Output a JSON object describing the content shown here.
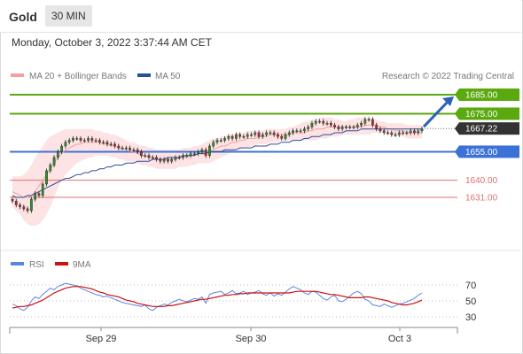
{
  "header": {
    "title": "Gold",
    "timeframe": "30 MIN"
  },
  "date_label": "Monday, October 3, 2022 3:37:44 AM CET",
  "legend": {
    "ma20": "MA 20 + Bollinger Bands",
    "ma50": "MA 50",
    "credit": "Research © 2022 Trading Central",
    "rsi": "RSI",
    "rsi9": "9MA"
  },
  "colors": {
    "resistance": "#5aa90e",
    "support": "#3c72d8",
    "minor_support": "#e07070",
    "last_price": "#333333",
    "bollinger": "#fde3e3",
    "ma20": "#f4a0a0",
    "ma50": "#2c4f9a",
    "rsi": "#5b86e0",
    "rsi_ma": "#cc1111",
    "arrow": "#2a62b8",
    "candle_up": "#2f8f2f",
    "candle_down": "#b03030"
  },
  "chart_data": [
    {
      "type": "candlestick",
      "title": "Gold",
      "ylim": [
        1616,
        1700
      ],
      "x_ticks": [
        "Sep 29",
        "Sep 30",
        "Oct 3"
      ],
      "levels": [
        {
          "label": "1685.00",
          "value": 1685.0,
          "kind": "resistance"
        },
        {
          "label": "1675.00",
          "value": 1675.0,
          "kind": "resistance"
        },
        {
          "label": "1667.22",
          "value": 1667.22,
          "kind": "last_price"
        },
        {
          "label": "1655.00",
          "value": 1655.0,
          "kind": "support"
        },
        {
          "label": "1640.00",
          "value": 1640.0,
          "kind": "minor_support"
        },
        {
          "label": "1631.00",
          "value": 1631.0,
          "kind": "minor_support"
        }
      ],
      "close": [
        1629,
        1627,
        1626,
        1625,
        1624,
        1630,
        1633,
        1632,
        1638,
        1645,
        1648,
        1652,
        1655,
        1658,
        1660,
        1661,
        1662,
        1662,
        1661,
        1661,
        1662,
        1661,
        1661,
        1660,
        1660,
        1659,
        1659,
        1658,
        1657,
        1657,
        1657,
        1656,
        1656,
        1655,
        1653,
        1653,
        1652,
        1652,
        1651,
        1650,
        1651,
        1650,
        1651,
        1652,
        1652,
        1653,
        1653,
        1654,
        1654,
        1655,
        1656,
        1653,
        1658,
        1660,
        1661,
        1661,
        1662,
        1663,
        1662,
        1664,
        1663,
        1663,
        1664,
        1664,
        1665,
        1663,
        1664,
        1665,
        1665,
        1664,
        1663,
        1662,
        1664,
        1665,
        1666,
        1666,
        1666,
        1667,
        1668,
        1670,
        1671,
        1671,
        1670,
        1670,
        1669,
        1668,
        1667,
        1668,
        1668,
        1668,
        1668,
        1669,
        1670,
        1672,
        1672,
        1669,
        1667,
        1666,
        1665,
        1665,
        1664,
        1664,
        1665,
        1665,
        1665,
        1666,
        1665,
        1666,
        1667
      ],
      "series": [
        {
          "name": "MA 20",
          "values": [
            1634,
            1633,
            1632,
            1631,
            1631,
            1632,
            1634,
            1637,
            1640,
            1643,
            1646,
            1649,
            1652,
            1654,
            1656,
            1657,
            1658,
            1659,
            1659,
            1660,
            1660,
            1660,
            1660,
            1660,
            1659,
            1659,
            1658,
            1658,
            1657,
            1657,
            1656,
            1655,
            1655,
            1654,
            1653,
            1653,
            1652,
            1652,
            1651,
            1651,
            1651,
            1651,
            1651,
            1651,
            1652,
            1652,
            1652,
            1653,
            1653,
            1654,
            1654,
            1655,
            1655,
            1656,
            1657,
            1658,
            1658,
            1659,
            1660,
            1660,
            1661,
            1661,
            1662,
            1662,
            1662,
            1663,
            1663,
            1663,
            1664,
            1664,
            1664,
            1664,
            1664,
            1664,
            1665,
            1665,
            1665,
            1665,
            1666,
            1666,
            1667,
            1667,
            1667,
            1668,
            1668,
            1668,
            1668,
            1668,
            1668,
            1668,
            1668,
            1668,
            1668,
            1669,
            1669,
            1669,
            1669,
            1668,
            1668,
            1667,
            1667,
            1666,
            1666,
            1666,
            1665,
            1665,
            1665,
            1665,
            1665
          ]
        },
        {
          "name": "MA 50",
          "values": [
            1632,
            1631,
            1631,
            1631,
            1632,
            1632,
            1633,
            1634,
            1635,
            1636,
            1637,
            1638,
            1639,
            1640,
            1641,
            1641,
            1642,
            1643,
            1643,
            1644,
            1644,
            1645,
            1645,
            1646,
            1646,
            1647,
            1647,
            1648,
            1648,
            1648,
            1649,
            1649,
            1649,
            1650,
            1650,
            1650,
            1650,
            1651,
            1651,
            1651,
            1651,
            1652,
            1652,
            1652,
            1652,
            1653,
            1653,
            1653,
            1653,
            1654,
            1654,
            1654,
            1655,
            1655,
            1655,
            1655,
            1656,
            1656,
            1656,
            1656,
            1657,
            1657,
            1657,
            1657,
            1658,
            1658,
            1658,
            1658,
            1659,
            1659,
            1659,
            1660,
            1660,
            1660,
            1661,
            1661,
            1661,
            1662,
            1662,
            1663,
            1663,
            1663,
            1664,
            1664,
            1664,
            1665,
            1665,
            1665,
            1666,
            1666,
            1666,
            1666,
            1667,
            1667,
            1667,
            1667,
            1667,
            1667,
            1667,
            1667,
            1667,
            1667,
            1667,
            1667,
            1667,
            1667,
            1667,
            1667,
            1667
          ]
        }
      ],
      "bollinger_upper": [
        1642,
        1642,
        1642,
        1643,
        1645,
        1648,
        1652,
        1655,
        1658,
        1661,
        1663,
        1664,
        1665,
        1666,
        1667,
        1667,
        1667,
        1667,
        1667,
        1667,
        1667,
        1667,
        1666,
        1666,
        1665,
        1665,
        1664,
        1664,
        1663,
        1662,
        1661,
        1660,
        1660,
        1659,
        1658,
        1658,
        1657,
        1657,
        1656,
        1656,
        1656,
        1656,
        1656,
        1656,
        1656,
        1657,
        1657,
        1657,
        1658,
        1658,
        1659,
        1660,
        1661,
        1662,
        1662,
        1663,
        1663,
        1664,
        1664,
        1665,
        1665,
        1665,
        1666,
        1666,
        1666,
        1666,
        1666,
        1667,
        1667,
        1667,
        1667,
        1667,
        1667,
        1668,
        1668,
        1669,
        1670,
        1671,
        1671,
        1672,
        1672,
        1673,
        1673,
        1673,
        1673,
        1672,
        1672,
        1671,
        1671,
        1672,
        1672,
        1673,
        1673,
        1673,
        1673,
        1672,
        1672,
        1671,
        1671,
        1670,
        1670,
        1670,
        1670,
        1670,
        1669,
        1669,
        1669,
        1669,
        1669
      ],
      "bollinger_lower": [
        1626,
        1624,
        1622,
        1619,
        1617,
        1616,
        1616,
        1617,
        1619,
        1622,
        1626,
        1631,
        1636,
        1640,
        1643,
        1645,
        1647,
        1649,
        1650,
        1651,
        1652,
        1652,
        1653,
        1653,
        1653,
        1653,
        1652,
        1652,
        1651,
        1651,
        1650,
        1650,
        1649,
        1649,
        1648,
        1648,
        1647,
        1647,
        1646,
        1646,
        1646,
        1646,
        1646,
        1646,
        1647,
        1647,
        1647,
        1648,
        1648,
        1649,
        1649,
        1649,
        1649,
        1650,
        1651,
        1652,
        1653,
        1654,
        1655,
        1656,
        1656,
        1657,
        1657,
        1658,
        1658,
        1659,
        1659,
        1659,
        1660,
        1660,
        1660,
        1661,
        1661,
        1661,
        1661,
        1661,
        1661,
        1661,
        1661,
        1661,
        1661,
        1662,
        1662,
        1662,
        1663,
        1663,
        1663,
        1664,
        1664,
        1664,
        1664,
        1664,
        1664,
        1664,
        1664,
        1665,
        1665,
        1665,
        1665,
        1664,
        1664,
        1663,
        1663,
        1663,
        1662,
        1662,
        1662,
        1662,
        1662
      ],
      "forecast": {
        "from": 1667.22,
        "to": 1685.0
      }
    },
    {
      "type": "line",
      "title": "",
      "ylim": [
        20,
        80
      ],
      "y_ticks": [
        70,
        50,
        30
      ],
      "series": [
        {
          "name": "RSI",
          "values": [
            46,
            44,
            40,
            38,
            42,
            50,
            55,
            53,
            58,
            62,
            66,
            64,
            68,
            70,
            72,
            71,
            70,
            69,
            66,
            64,
            62,
            60,
            58,
            57,
            55,
            56,
            54,
            52,
            50,
            48,
            47,
            46,
            45,
            44,
            43,
            45,
            40,
            38,
            42,
            44,
            46,
            45,
            48,
            50,
            52,
            50,
            49,
            51,
            53,
            52,
            55,
            47,
            58,
            60,
            61,
            62,
            58,
            60,
            63,
            59,
            60,
            62,
            58,
            60,
            61,
            63,
            59,
            57,
            60,
            56,
            59,
            57,
            61,
            65,
            68,
            66,
            64,
            60,
            58,
            62,
            61,
            57,
            53,
            51,
            55,
            57,
            50,
            49,
            52,
            56,
            60,
            62,
            59,
            52,
            50,
            45,
            44,
            43,
            46,
            44,
            42,
            44,
            46,
            47,
            49,
            51,
            53,
            57,
            60
          ]
        },
        {
          "name": "9MA",
          "values": [
            41,
            42,
            43,
            43,
            44,
            45,
            47,
            49,
            51,
            54,
            57,
            60,
            62,
            64,
            66,
            67,
            68,
            68,
            68,
            67,
            66,
            65,
            63,
            61,
            60,
            58,
            57,
            56,
            55,
            53,
            51,
            50,
            49,
            47,
            46,
            45,
            44,
            43,
            43,
            43,
            43,
            44,
            44,
            45,
            46,
            47,
            48,
            49,
            50,
            51,
            52,
            52,
            53,
            54,
            55,
            56,
            57,
            57,
            58,
            58,
            59,
            59,
            60,
            60,
            60,
            60,
            60,
            60,
            60,
            60,
            60,
            60,
            60,
            60,
            61,
            62,
            62,
            62,
            62,
            62,
            62,
            61,
            60,
            59,
            58,
            58,
            57,
            56,
            55,
            54,
            54,
            54,
            54,
            55,
            55,
            54,
            53,
            52,
            51,
            50,
            48,
            47,
            46,
            45,
            45,
            46,
            47,
            49,
            51
          ]
        }
      ]
    }
  ]
}
